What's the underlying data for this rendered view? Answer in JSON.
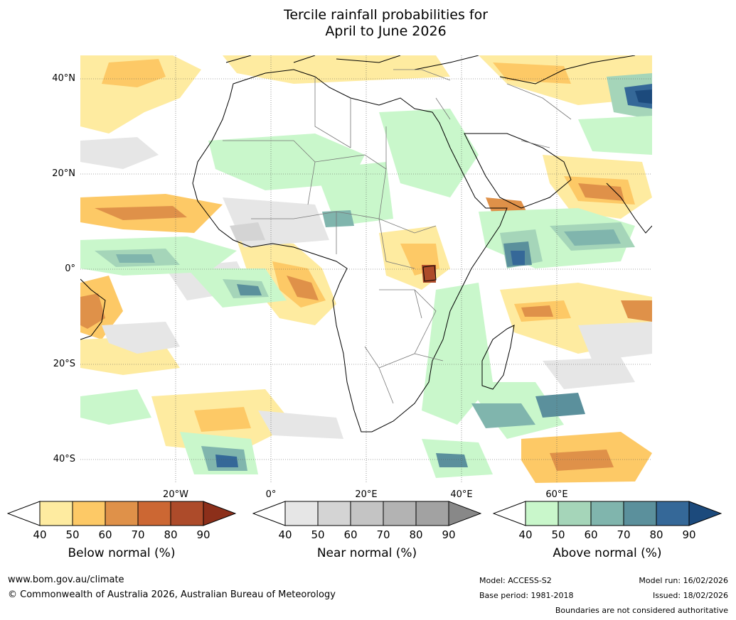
{
  "title": {
    "line1": "Tercile rainfall probabilities for",
    "line2": "April to June 2026"
  },
  "map": {
    "lat_labels": [
      "40°N",
      "20°N",
      "0°",
      "20°S",
      "40°S"
    ],
    "lon_labels": [
      "20°W",
      "0°",
      "20°E",
      "40°E",
      "60°E"
    ],
    "region": "Africa, Atlantic and western Indian Ocean"
  },
  "legends": [
    {
      "name": "below",
      "title": "Below normal (%)",
      "ticks": [
        "40",
        "50",
        "60",
        "70",
        "80",
        "90"
      ],
      "colors": [
        "#ffffff",
        "#feeba0",
        "#fdc966",
        "#df9149",
        "#cc6733",
        "#ad4b2a",
        "#8c2f1a"
      ]
    },
    {
      "name": "near",
      "title": "Near normal (%)",
      "ticks": [
        "40",
        "50",
        "60",
        "70",
        "80",
        "90"
      ],
      "colors": [
        "#ffffff",
        "#e6e6e6",
        "#d4d4d4",
        "#c4c4c4",
        "#b3b3b3",
        "#a2a2a2",
        "#888888"
      ]
    },
    {
      "name": "above",
      "title": "Above normal (%)",
      "ticks": [
        "40",
        "50",
        "60",
        "70",
        "80",
        "90"
      ],
      "colors": [
        "#ffffff",
        "#c9f7cb",
        "#a5d5b9",
        "#80b5ad",
        "#5b909c",
        "#356898",
        "#1c4a7c"
      ]
    }
  ],
  "footer": {
    "website": "www.bom.gov.au/climate",
    "copyright": "© Commonwealth of Australia 2026, Australian Bureau of Meteorology",
    "model": "Model: ACCESS-S2",
    "base_period": "Base period: 1981-2018",
    "model_run": "Model run: 16/02/2026",
    "issued": "Issued: 18/02/2026",
    "disclaimer": "Boundaries are not considered authoritative"
  }
}
